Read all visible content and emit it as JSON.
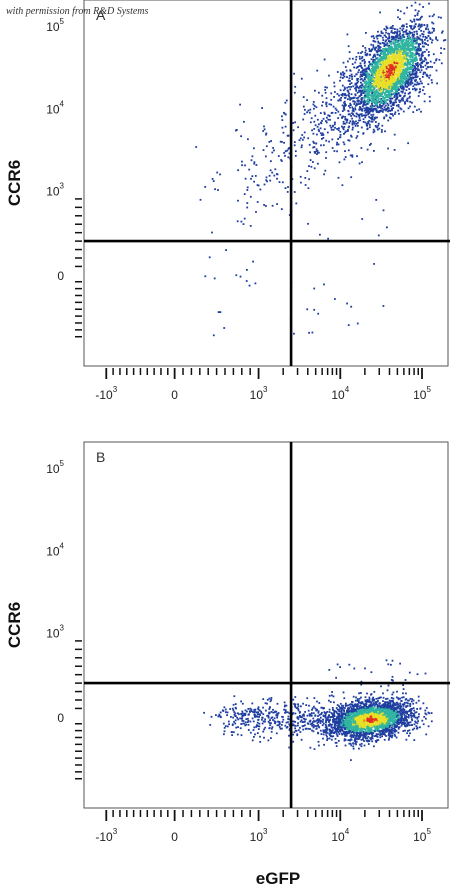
{
  "watermark": "with permission from R&D Systems",
  "colors": {
    "low": "#1f3ea0",
    "mid": "#2fb5a0",
    "high": "#e8e028",
    "peak": "#e03020",
    "gate": "#000000",
    "frame": "#555555"
  },
  "chart_data": [
    {
      "type": "scatter",
      "panel_label": "A",
      "xlabel": "",
      "ylabel": "CCR6",
      "x_ticks": [
        {
          "base": "-10",
          "exp": "3"
        },
        {
          "base": "0",
          "exp": ""
        },
        {
          "base": "10",
          "exp": "3"
        },
        {
          "base": "10",
          "exp": "4"
        },
        {
          "base": "10",
          "exp": "5"
        }
      ],
      "y_ticks": [
        {
          "base": "0",
          "exp": ""
        },
        {
          "base": "10",
          "exp": "3"
        },
        {
          "base": "10",
          "exp": "4"
        },
        {
          "base": "10",
          "exp": "5"
        }
      ],
      "quadrant_gate": {
        "x": 2500,
        "y": 400
      },
      "populations": [
        {
          "name": "main",
          "center": [
            45000,
            20000
          ],
          "spread": "wide",
          "density": "high"
        },
        {
          "name": "diagonal-tail",
          "from": [
            1000,
            900
          ],
          "to": [
            60000,
            30000
          ],
          "density": "low"
        }
      ]
    },
    {
      "type": "scatter",
      "panel_label": "B",
      "xlabel": "eGFP",
      "ylabel": "CCR6",
      "x_ticks": [
        {
          "base": "-10",
          "exp": "3"
        },
        {
          "base": "0",
          "exp": ""
        },
        {
          "base": "10",
          "exp": "3"
        },
        {
          "base": "10",
          "exp": "4"
        },
        {
          "base": "10",
          "exp": "5"
        }
      ],
      "y_ticks": [
        {
          "base": "0",
          "exp": ""
        },
        {
          "base": "10",
          "exp": "3"
        },
        {
          "base": "10",
          "exp": "4"
        },
        {
          "base": "10",
          "exp": "5"
        }
      ],
      "quadrant_gate": {
        "x": 2500,
        "y": 400
      },
      "populations": [
        {
          "name": "main",
          "center": [
            28000,
            20
          ],
          "spread": "compact",
          "density": "high"
        },
        {
          "name": "negative-tail",
          "from": [
            800,
            30
          ],
          "to": [
            8000,
            20
          ],
          "density": "low"
        }
      ]
    }
  ]
}
